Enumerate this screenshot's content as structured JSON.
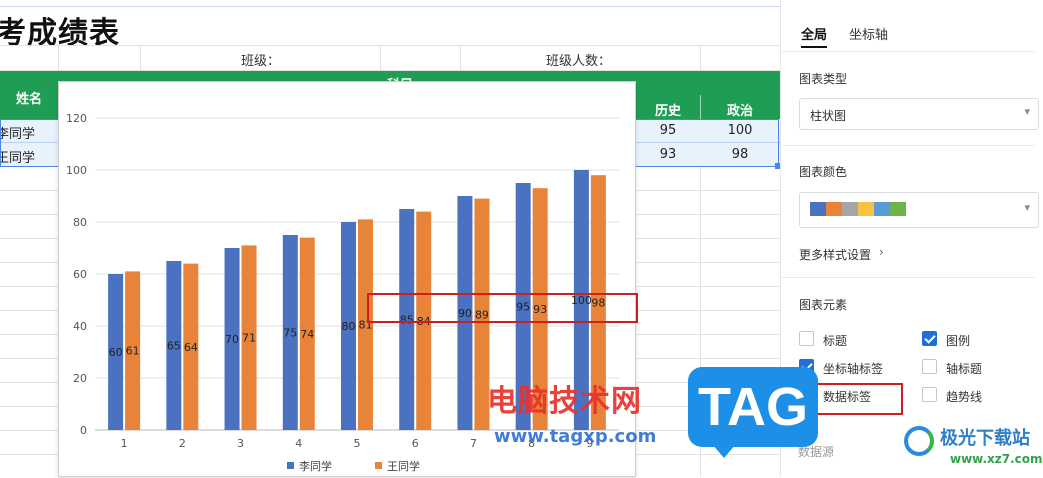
{
  "sheet": {
    "title": "考成绩表",
    "class_label": "班级：",
    "count_label": "班级人数：",
    "header": {
      "name": "姓名",
      "subject": "科目",
      "history": "历史",
      "politics": "政治"
    },
    "rows": [
      {
        "name": "李同学",
        "history": "95",
        "politics": "100"
      },
      {
        "name": "王同学",
        "history": "93",
        "politics": "98"
      }
    ]
  },
  "chart_data": {
    "type": "bar",
    "categories": [
      "1",
      "2",
      "3",
      "4",
      "5",
      "6",
      "7",
      "8",
      "9"
    ],
    "series": [
      {
        "name": "李同学",
        "color": "#4a72c0",
        "values": [
          60,
          65,
          70,
          75,
          80,
          85,
          90,
          95,
          100
        ]
      },
      {
        "name": "王同学",
        "color": "#e8843a",
        "values": [
          61,
          64,
          71,
          74,
          81,
          84,
          89,
          93,
          98
        ]
      }
    ],
    "ylim": [
      0,
      120
    ],
    "yticks": [
      0,
      20,
      40,
      60,
      80,
      100,
      120
    ],
    "grid": true,
    "legend": "bottom",
    "data_labels": true
  },
  "panel": {
    "tabs": [
      "全局",
      "坐标轴"
    ],
    "chart_type_label": "图表类型",
    "chart_type_value": "柱状图",
    "chart_color_label": "图表颜色",
    "swatch_colors": [
      "#4a72c0",
      "#e8843a",
      "#a5a5a5",
      "#f6c343",
      "#5b9bd5",
      "#6fb24b"
    ],
    "more_style": "更多样式设置",
    "elements_label": "图表元素",
    "elements": [
      {
        "label": "标题",
        "checked": false
      },
      {
        "label": "图例",
        "checked": true
      },
      {
        "label": "坐标轴标签",
        "checked": true
      },
      {
        "label": "轴标题",
        "checked": false
      },
      {
        "label": "数据标签",
        "checked": true
      },
      {
        "label": "趋势线",
        "checked": false
      }
    ],
    "data_source": "数据源"
  },
  "watermarks": {
    "cn_site": "电脑技术网",
    "url": "www.tagxp.com",
    "tag": "TAG",
    "brand": "极光下载站",
    "brand_url": "www.xz7.com"
  }
}
